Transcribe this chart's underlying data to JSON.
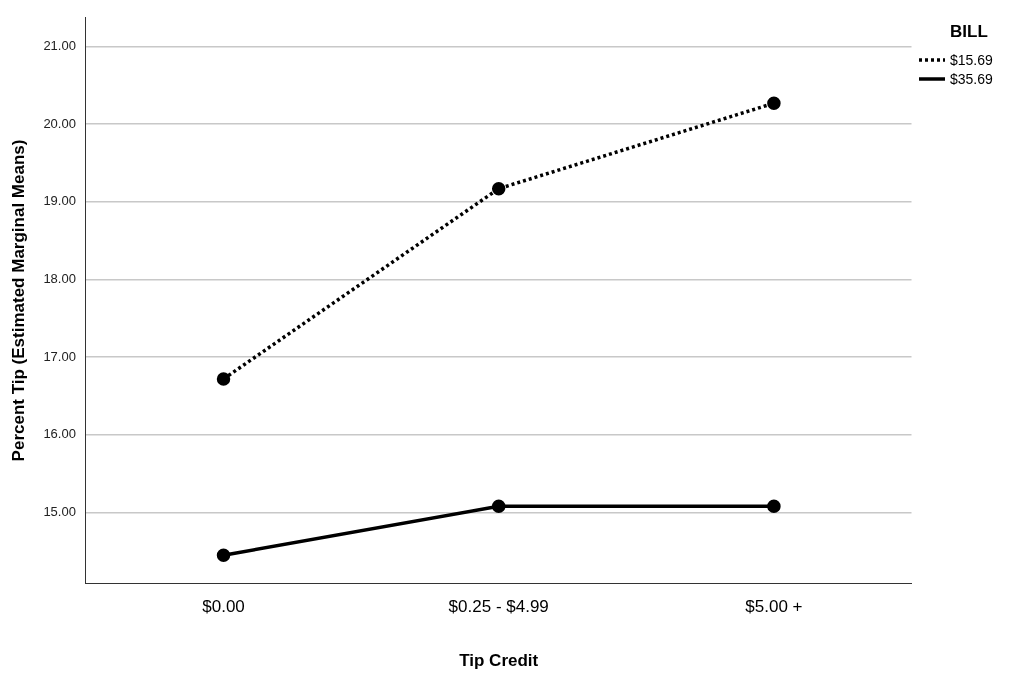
{
  "chart_data": {
    "type": "line",
    "xlabel": "Tip Credit",
    "ylabel": "Percent Tip (Estimated Marginal Means)",
    "legend_title": "BILL",
    "categories": [
      "$0.00",
      "$0.25 - $4.99",
      "$5.00 +"
    ],
    "series": [
      {
        "name": "$15.69",
        "color": "#000000",
        "values": [
          16.72,
          19.17,
          20.27
        ],
        "line_style": "dotted"
      },
      {
        "name": "$35.69",
        "color": "#000000",
        "values": [
          14.45,
          15.08,
          15.08
        ],
        "line_style": "solid"
      }
    ],
    "ylim": [
      14.09,
      21.37
    ],
    "yticks": [
      {
        "value": 15,
        "label": "15.00"
      },
      {
        "value": 16,
        "label": "16.00"
      },
      {
        "value": 17,
        "label": "17.00"
      },
      {
        "value": 18,
        "label": "18.00"
      },
      {
        "value": 19,
        "label": "19.00"
      },
      {
        "value": 20,
        "label": "20.00"
      },
      {
        "value": 21,
        "label": "21.00"
      }
    ],
    "grid": "y",
    "legend": "top right",
    "marker": "circle"
  }
}
